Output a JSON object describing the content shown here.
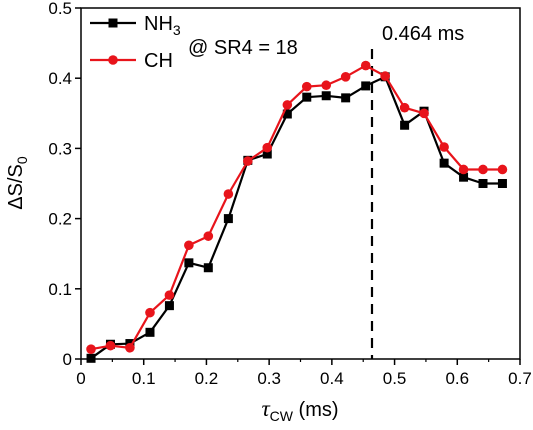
{
  "chart_data": {
    "type": "line",
    "title": "",
    "xlabel": {
      "symbol": "τ",
      "subscript": "CW",
      "unit": "(ms)"
    },
    "ylabel": {
      "prefix": "ΔS/S",
      "subscript": "0"
    },
    "xlim": [
      0,
      0.7
    ],
    "ylim": [
      0,
      0.5
    ],
    "x_ticks": [
      0,
      0.1,
      0.2,
      0.3,
      0.4,
      0.5,
      0.6,
      0.7
    ],
    "x_tick_labels": [
      "0",
      "0.1",
      "0.2",
      "0.3",
      "0.4",
      "0.5",
      "0.6",
      "0.7"
    ],
    "y_ticks": [
      0,
      0.1,
      0.2,
      0.3,
      0.4,
      0.5
    ],
    "y_tick_labels": [
      "0",
      "0.1",
      "0.2",
      "0.3",
      "0.4",
      "0.5"
    ],
    "grid": false,
    "legend_position": "top-left",
    "series": [
      {
        "name": "NH",
        "name_subscript": "3",
        "color": "#000000",
        "marker": "square",
        "x": [
          0.016,
          0.047,
          0.078,
          0.11,
          0.141,
          0.172,
          0.203,
          0.235,
          0.266,
          0.297,
          0.329,
          0.36,
          0.391,
          0.422,
          0.454,
          0.485,
          0.516,
          0.547,
          0.579,
          0.61,
          0.641,
          0.672
        ],
        "y": [
          0.001,
          0.021,
          0.022,
          0.038,
          0.076,
          0.137,
          0.13,
          0.2,
          0.283,
          0.292,
          0.349,
          0.373,
          0.375,
          0.372,
          0.389,
          0.402,
          0.333,
          0.353,
          0.279,
          0.259,
          0.25,
          0.25
        ]
      },
      {
        "name": "CH",
        "color": "#e8141b",
        "marker": "circle",
        "x": [
          0.016,
          0.047,
          0.078,
          0.11,
          0.141,
          0.172,
          0.203,
          0.235,
          0.266,
          0.297,
          0.329,
          0.36,
          0.391,
          0.422,
          0.454,
          0.485,
          0.516,
          0.547,
          0.579,
          0.61,
          0.641,
          0.672
        ],
        "y": [
          0.014,
          0.019,
          0.016,
          0.066,
          0.091,
          0.162,
          0.175,
          0.235,
          0.282,
          0.301,
          0.362,
          0.388,
          0.39,
          0.402,
          0.418,
          0.403,
          0.358,
          0.35,
          0.302,
          0.27,
          0.27,
          0.27
        ]
      }
    ],
    "vline": {
      "x": 0.464,
      "label": "0.464 ms",
      "style": "dashed"
    },
    "annotation": {
      "text": "@ SR4 = 18"
    }
  }
}
